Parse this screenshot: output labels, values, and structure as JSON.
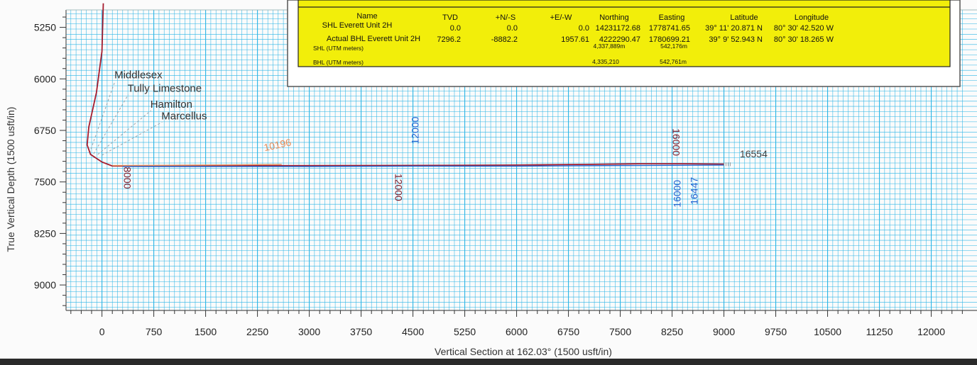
{
  "chart_data": {
    "type": "line",
    "xlabel": "Vertical Section at 162.03° (1500 usft/in)",
    "ylabel": "True Vertical Depth (1500 usft/in)",
    "xlim": [
      -500,
      12500
    ],
    "ylim": [
      4900,
      9400
    ],
    "y_inverted": true,
    "grid": true,
    "x_ticks": [
      0,
      750,
      1500,
      2250,
      3000,
      3750,
      4500,
      5250,
      6000,
      6750,
      7500,
      8250,
      9000,
      9750,
      10500,
      11250,
      12000
    ],
    "x_tick_labels": [
      "0",
      "750",
      "1500",
      "2250",
      "3000",
      "3750",
      "4500",
      "5250",
      "6000",
      "6750",
      "7500",
      "8250",
      "9000",
      "9750",
      "10500",
      "11250",
      "12000"
    ],
    "y_ticks": [
      5250,
      6000,
      6750,
      7500,
      8250,
      9000
    ],
    "y_tick_labels": [
      "5250",
      "6000",
      "6750",
      "7500",
      "8250",
      "9000"
    ],
    "series": [
      {
        "color": "#a61c2e",
        "x": [
          20,
          12,
          0,
          -80,
          -190,
          -215,
          -165,
          0,
          150,
          400,
          1500,
          3000,
          4500,
          6000,
          7000,
          7800,
          8400,
          9000
        ],
        "y": [
          4900,
          5150,
          5600,
          6200,
          6700,
          6960,
          7100,
          7210,
          7268,
          7268,
          7268,
          7262,
          7260,
          7255,
          7245,
          7235,
          7235,
          7240
        ]
      },
      {
        "color": "#1f63d0",
        "x": [
          300,
          1500,
          3000,
          4500,
          6000,
          7500,
          8500,
          9000
        ],
        "y": [
          7275,
          7275,
          7275,
          7270,
          7270,
          7262,
          7258,
          7255
        ]
      },
      {
        "color": "#e88e5a",
        "x": [
          150,
          1000,
          1800,
          2600
        ],
        "y": [
          7262,
          7258,
          7252,
          7245
        ]
      }
    ],
    "formations": [
      {
        "name": "Middlesex",
        "x": 180,
        "y": 5990
      },
      {
        "name": "Tully Limestone",
        "x": 370,
        "y": 6190
      },
      {
        "name": "Hamilton",
        "x": 700,
        "y": 6420
      },
      {
        "name": "Marcellus",
        "x": 860,
        "y": 6590
      }
    ],
    "md_labels": [
      {
        "text": "10196",
        "x": 2550,
        "y": 7010,
        "color": "#e88e5a",
        "rotate": -12
      },
      {
        "text": "12000",
        "x": 4580,
        "y": 6750,
        "color": "#1f63d0",
        "rotate": -90
      },
      {
        "text": "16000",
        "x": 8260,
        "y": 6920,
        "color": "#7a1b2a",
        "rotate": 90
      },
      {
        "text": "8000",
        "x": 320,
        "y": 7440,
        "color": "#7a1b2a",
        "rotate": 90
      },
      {
        "text": "12000",
        "x": 4240,
        "y": 7580,
        "color": "#7a1b2a",
        "rotate": 90
      },
      {
        "text": "16000",
        "x": 8370,
        "y": 7670,
        "color": "#1f63d0",
        "rotate": -90
      },
      {
        "text": "16447",
        "x": 8620,
        "y": 7630,
        "color": "#1f63d0",
        "rotate": -90
      },
      {
        "text": "16554",
        "x": 9430,
        "y": 7140,
        "color": "#444444",
        "rotate": 0
      }
    ]
  },
  "well_table": {
    "headers": [
      "Name",
      "TVD",
      "+N/-S",
      "+E/-W",
      "Northing",
      "Easting",
      "Latitude",
      "Longitude"
    ],
    "rows": [
      [
        "SHL Everett Unit 2H",
        "0.0",
        "0.0",
        "0.0",
        "14231172.68",
        "1778741.65",
        "39° 11' 20.871 N",
        "80° 30' 42.520 W"
      ],
      [
        "Actual BHL Everett Unit 2H",
        "7296.2",
        "-8882.2",
        "1957.61",
        "4222290.47",
        "1780699.21",
        "39° 9' 52.943 N",
        "80° 30' 18.265 W"
      ]
    ],
    "shl_label": "SHL (UTM meters)",
    "shl_northing": "4,337,889m",
    "shl_easting": "542,176m",
    "bhl_label": "BHL (UTM meters)",
    "bhl_northing": "4,335,210",
    "bhl_easting": "542,761m"
  },
  "colors": {
    "grid": "#2bb5e6",
    "table_fill": "#f2ee0a"
  }
}
